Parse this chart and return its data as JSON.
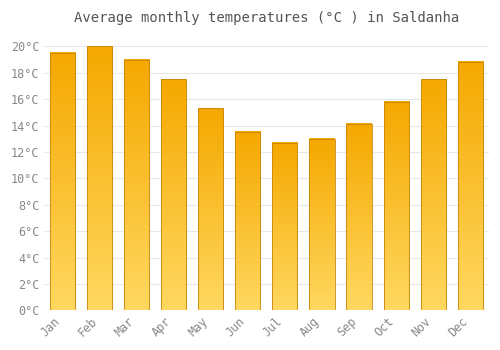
{
  "title": "Average monthly temperatures (°C ) in Saldanha",
  "months": [
    "Jan",
    "Feb",
    "Mar",
    "Apr",
    "May",
    "Jun",
    "Jul",
    "Aug",
    "Sep",
    "Oct",
    "Nov",
    "Dec"
  ],
  "temperatures": [
    19.5,
    20.0,
    19.0,
    17.5,
    15.3,
    13.5,
    12.7,
    13.0,
    14.1,
    15.8,
    17.5,
    18.8
  ],
  "bar_color_top": "#F5A800",
  "bar_color_bottom": "#FFD860",
  "bar_edge_color": "#C8860A",
  "background_color": "#FFFFFF",
  "grid_color": "#E8E8E8",
  "text_color": "#888888",
  "ylim": [
    0,
    21
  ],
  "yticks": [
    0,
    2,
    4,
    6,
    8,
    10,
    12,
    14,
    16,
    18,
    20
  ],
  "ytick_labels": [
    "0°C",
    "2°C",
    "4°C",
    "6°C",
    "8°C",
    "10°C",
    "12°C",
    "14°C",
    "16°C",
    "18°C",
    "20°C"
  ],
  "title_fontsize": 10,
  "tick_fontsize": 8.5,
  "fig_width": 5.0,
  "fig_height": 3.5,
  "bar_width": 0.68,
  "gradient_steps": 200
}
